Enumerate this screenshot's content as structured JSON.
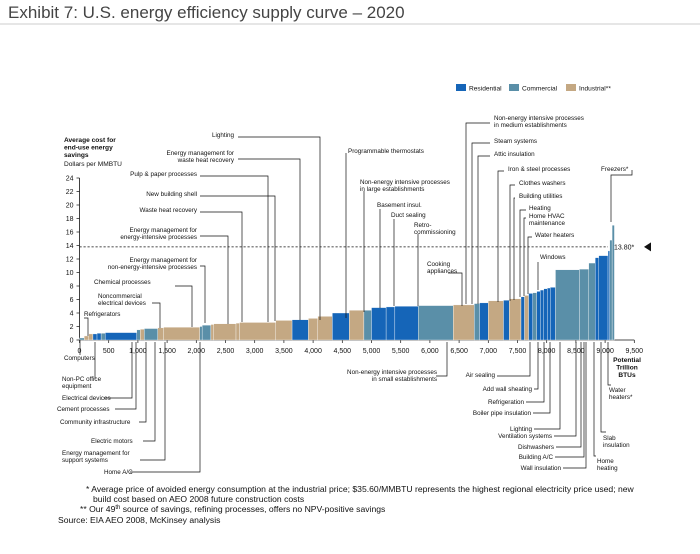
{
  "title": "Exhibit 7: U.S. energy efficiency supply curve – 2020",
  "chart_data": {
    "type": "bar",
    "subtype": "supply-curve (variable-width bars)",
    "y_axis": {
      "title": "Average cost for end-use energy savings",
      "unit": "Dollars per MMBTU",
      "range": [
        0,
        24
      ],
      "ticks": [
        "0",
        "2",
        "4",
        "6",
        "8",
        "10",
        "12",
        "14",
        "16",
        "18",
        "20",
        "22",
        "24"
      ]
    },
    "x_axis": {
      "range": [
        0,
        9500
      ],
      "ticks": [
        "0",
        "500",
        "1,000",
        "1,500",
        "2,000",
        "2,500",
        "3,000",
        "3,500",
        "4,000",
        "4,500",
        "5,000",
        "5,500",
        "6,000",
        "6,500",
        "7,000",
        "7,500",
        "8,000",
        "8,500",
        "9,000",
        "9,500"
      ],
      "end_label": "Potential Trillion BTUs"
    },
    "legend": {
      "placement": "top-right",
      "items": [
        {
          "label": "Residential",
          "color": "#1565b8"
        },
        {
          "label": "Commercial",
          "color": "#5a8fa8"
        },
        {
          "label": "Industrial**",
          "color": "#c4a883"
        }
      ]
    },
    "threshold": {
      "value": 13.8,
      "label": "13.80*",
      "style": "dashed"
    },
    "bars": [
      {
        "start": 0,
        "end": 80,
        "value": 0.3,
        "sector": "commercial"
      },
      {
        "start": 80,
        "end": 160,
        "value": 0.6,
        "sector": "industrial"
      },
      {
        "start": 160,
        "end": 230,
        "value": 0.9,
        "sector": "industrial"
      },
      {
        "start": 230,
        "end": 300,
        "value": 0.9,
        "sector": "residential"
      },
      {
        "start": 300,
        "end": 370,
        "value": 1.0,
        "sector": "residential"
      },
      {
        "start": 370,
        "end": 440,
        "value": 1.0,
        "sector": "commercial"
      },
      {
        "start": 440,
        "end": 980,
        "value": 1.1,
        "sector": "residential"
      },
      {
        "start": 980,
        "end": 1040,
        "value": 1.5,
        "sector": "commercial"
      },
      {
        "start": 1040,
        "end": 1110,
        "value": 1.6,
        "sector": "industrial"
      },
      {
        "start": 1110,
        "end": 1340,
        "value": 1.7,
        "sector": "commercial"
      },
      {
        "start": 1340,
        "end": 1440,
        "value": 1.8,
        "sector": "industrial"
      },
      {
        "start": 1440,
        "end": 2060,
        "value": 1.9,
        "sector": "industrial"
      },
      {
        "start": 2060,
        "end": 2100,
        "value": 2.0,
        "sector": "commercial"
      },
      {
        "start": 2100,
        "end": 2250,
        "value": 2.2,
        "sector": "commercial"
      },
      {
        "start": 2250,
        "end": 2300,
        "value": 2.3,
        "sector": "industrial"
      },
      {
        "start": 2300,
        "end": 2680,
        "value": 2.4,
        "sector": "industrial"
      },
      {
        "start": 2680,
        "end": 2740,
        "value": 2.5,
        "sector": "industrial"
      },
      {
        "start": 2740,
        "end": 3360,
        "value": 2.6,
        "sector": "industrial"
      },
      {
        "start": 3360,
        "end": 3640,
        "value": 2.9,
        "sector": "industrial"
      },
      {
        "start": 3640,
        "end": 3920,
        "value": 3.0,
        "sector": "residential"
      },
      {
        "start": 3920,
        "end": 4080,
        "value": 3.2,
        "sector": "industrial"
      },
      {
        "start": 4080,
        "end": 4330,
        "value": 3.5,
        "sector": "industrial"
      },
      {
        "start": 4330,
        "end": 4620,
        "value": 4.0,
        "sector": "residential"
      },
      {
        "start": 4620,
        "end": 4870,
        "value": 4.4,
        "sector": "industrial"
      },
      {
        "start": 4870,
        "end": 5000,
        "value": 4.4,
        "sector": "commercial"
      },
      {
        "start": 5000,
        "end": 5250,
        "value": 4.8,
        "sector": "residential"
      },
      {
        "start": 5250,
        "end": 5400,
        "value": 4.9,
        "sector": "residential"
      },
      {
        "start": 5400,
        "end": 5800,
        "value": 5.0,
        "sector": "residential"
      },
      {
        "start": 5800,
        "end": 6400,
        "value": 5.1,
        "sector": "commercial"
      },
      {
        "start": 6400,
        "end": 6760,
        "value": 5.2,
        "sector": "industrial"
      },
      {
        "start": 6760,
        "end": 6850,
        "value": 5.4,
        "sector": "commercial"
      },
      {
        "start": 6850,
        "end": 7000,
        "value": 5.5,
        "sector": "residential"
      },
      {
        "start": 7000,
        "end": 7260,
        "value": 5.8,
        "sector": "industrial"
      },
      {
        "start": 7260,
        "end": 7360,
        "value": 5.9,
        "sector": "residential"
      },
      {
        "start": 7360,
        "end": 7560,
        "value": 6.1,
        "sector": "industrial"
      },
      {
        "start": 7560,
        "end": 7620,
        "value": 6.4,
        "sector": "residential"
      },
      {
        "start": 7620,
        "end": 7690,
        "value": 6.6,
        "sector": "industrial"
      },
      {
        "start": 7690,
        "end": 7760,
        "value": 6.9,
        "sector": "residential"
      },
      {
        "start": 7760,
        "end": 7830,
        "value": 7.0,
        "sector": "commercial"
      },
      {
        "start": 7830,
        "end": 7890,
        "value": 7.2,
        "sector": "residential"
      },
      {
        "start": 7890,
        "end": 7950,
        "value": 7.4,
        "sector": "residential"
      },
      {
        "start": 7950,
        "end": 8010,
        "value": 7.6,
        "sector": "residential"
      },
      {
        "start": 8010,
        "end": 8060,
        "value": 7.7,
        "sector": "residential"
      },
      {
        "start": 8060,
        "end": 8150,
        "value": 7.8,
        "sector": "residential"
      },
      {
        "start": 8150,
        "end": 8560,
        "value": 10.4,
        "sector": "commercial"
      },
      {
        "start": 8560,
        "end": 8720,
        "value": 10.5,
        "sector": "commercial"
      },
      {
        "start": 8720,
        "end": 8830,
        "value": 11.4,
        "sector": "commercial"
      },
      {
        "start": 8830,
        "end": 8890,
        "value": 12.2,
        "sector": "residential"
      },
      {
        "start": 8890,
        "end": 9050,
        "value": 12.5,
        "sector": "residential"
      },
      {
        "start": 9050,
        "end": 9080,
        "value": 13.2,
        "sector": "residential"
      },
      {
        "start": 9080,
        "end": 9120,
        "value": 14.8,
        "sector": "commercial"
      },
      {
        "start": 9120,
        "end": 9160,
        "value": 17.0,
        "sector": "commercial"
      }
    ],
    "labels_left": [
      "Refrigerators",
      "Noncommercial electrical devices",
      "Chemical processes",
      "Energy management for non-energy-intensive processes",
      "Energy management for energy-intensive processes",
      "Waste heat recovery",
      "New building shell",
      "Pulp & paper processes",
      "Energy management for waste heat recovery",
      "Lighting",
      "Programmable thermostats",
      "Non-energy intensive processes in large establishments",
      "Basement insul.",
      "Duct sealing",
      "Retro-commissioning",
      "Cooking appliances"
    ],
    "labels_right": [
      "Non-energy intensive processes in medium establishments",
      "Steam systems",
      "Attic insulation",
      "Iron & steel processes",
      "Clothes washers",
      "Building utilities",
      "Heating",
      "Home HVAC maintenance",
      "Water heaters",
      "Windows",
      "Freezers*"
    ],
    "labels_bottom": [
      "Computers",
      "Non-PC office equipment",
      "Electrical devices",
      "Cement processes",
      "Community infrastructure",
      "Electric motors",
      "Energy management for support systems",
      "Home A/C",
      "Non-energy intensive processes in small establishments",
      "Air sealing",
      "Add wall sheating",
      "Refrigeration",
      "Boiler pipe insulation",
      "Lighting",
      "Ventilation systems",
      "Dishwashers",
      "Building A/C",
      "Wall insulation",
      "Home heating",
      "Slab insulation",
      "Water heaters*"
    ]
  },
  "footnotes": [
    "* Average price of avoided energy consumption at the industrial price; $35.60/MMBTU represents the highest regional electricity price used; new build cost based on AEO 2008 future construction costs",
    "** Our 49th source of savings, refining processes, offers no NPV-positive savings",
    "Source: EIA AEO 2008, McKinsey analysis"
  ]
}
